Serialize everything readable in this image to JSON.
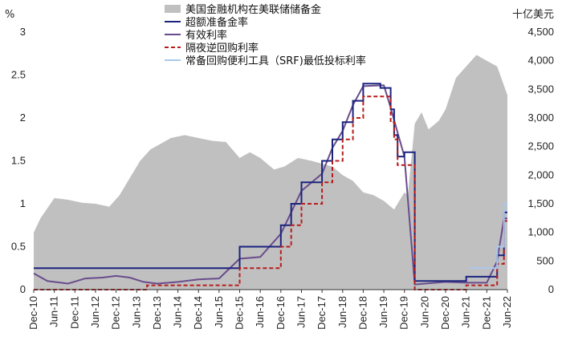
{
  "chart_data": {
    "type": "line",
    "left_unit": "%",
    "right_unit": "十亿美元",
    "ylim_left": [
      0,
      3
    ],
    "ylim_right": [
      0,
      4500
    ],
    "left_ticks": [
      "0",
      "0.5",
      "1",
      "1.5",
      "2",
      "2.5",
      "3"
    ],
    "right_ticks": [
      "0",
      "500",
      "1,000",
      "1,500",
      "2,000",
      "2,500",
      "3,000",
      "3,500",
      "4,000",
      "4,500"
    ],
    "x_range": [
      "2010-12",
      "2022-06"
    ],
    "x_ticks": [
      "Dec-10",
      "Jun-11",
      "Dec-11",
      "Jun-12",
      "Dec-12",
      "Jun-13",
      "Dec-13",
      "Jun-14",
      "Dec-14",
      "Jun-15",
      "Dec-15",
      "Jun-16",
      "Dec-16",
      "Jun-17",
      "Dec-17",
      "Jun-18",
      "Dec-18",
      "Jun-19",
      "Dec-19",
      "Jun-20",
      "Dec-20",
      "Jun-21",
      "Dec-21",
      "Jun-22"
    ],
    "legend_placement": "top-center",
    "grid": false,
    "series": [
      {
        "name": "美国金融机构在美联储储备金",
        "kind": "area",
        "axis": "right",
        "color": "#c0c0c0",
        "points": [
          [
            "2010-12",
            1000
          ],
          [
            "2011-02",
            1250
          ],
          [
            "2011-06",
            1600
          ],
          [
            "2011-10",
            1570
          ],
          [
            "2012-02",
            1520
          ],
          [
            "2012-06",
            1500
          ],
          [
            "2012-10",
            1450
          ],
          [
            "2013-01",
            1650
          ],
          [
            "2013-04",
            1950
          ],
          [
            "2013-07",
            2250
          ],
          [
            "2013-10",
            2450
          ],
          [
            "2014-01",
            2550
          ],
          [
            "2014-04",
            2650
          ],
          [
            "2014-08",
            2700
          ],
          [
            "2014-12",
            2650
          ],
          [
            "2015-04",
            2600
          ],
          [
            "2015-08",
            2580
          ],
          [
            "2015-12",
            2300
          ],
          [
            "2016-03",
            2400
          ],
          [
            "2016-06",
            2300
          ],
          [
            "2016-10",
            2100
          ],
          [
            "2017-01",
            2150
          ],
          [
            "2017-05",
            2300
          ],
          [
            "2017-09",
            2250
          ],
          [
            "2017-12",
            2200
          ],
          [
            "2018-03",
            2150
          ],
          [
            "2018-06",
            2000
          ],
          [
            "2018-09",
            1900
          ],
          [
            "2018-12",
            1700
          ],
          [
            "2019-03",
            1650
          ],
          [
            "2019-06",
            1550
          ],
          [
            "2019-09",
            1400
          ],
          [
            "2019-12",
            1700
          ],
          [
            "2020-01",
            1650
          ],
          [
            "2020-03",
            2900
          ],
          [
            "2020-05",
            3100
          ],
          [
            "2020-07",
            2800
          ],
          [
            "2020-10",
            2950
          ],
          [
            "2020-12",
            3150
          ],
          [
            "2021-03",
            3700
          ],
          [
            "2021-06",
            3900
          ],
          [
            "2021-09",
            4100
          ],
          [
            "2021-12",
            4000
          ],
          [
            "2022-03",
            3900
          ],
          [
            "2022-06",
            3400
          ]
        ]
      },
      {
        "name": "超额准备金率",
        "kind": "step",
        "axis": "left",
        "color": "#1a237e",
        "points": [
          [
            "2010-12",
            0.25
          ],
          [
            "2015-12",
            0.5
          ],
          [
            "2016-12",
            0.75
          ],
          [
            "2017-03",
            1.0
          ],
          [
            "2017-06",
            1.25
          ],
          [
            "2017-12",
            1.5
          ],
          [
            "2018-03",
            1.75
          ],
          [
            "2018-06",
            1.95
          ],
          [
            "2018-09",
            2.2
          ],
          [
            "2018-12",
            2.4
          ],
          [
            "2019-05",
            2.35
          ],
          [
            "2019-08",
            2.1
          ],
          [
            "2019-09",
            1.8
          ],
          [
            "2019-10",
            1.55
          ],
          [
            "2019-12",
            1.6
          ],
          [
            "2020-03",
            0.1
          ],
          [
            "2021-06",
            0.15
          ],
          [
            "2022-03",
            0.4
          ],
          [
            "2022-05",
            0.9
          ],
          [
            "2022-06",
            0.9
          ]
        ]
      },
      {
        "name": "有效利率",
        "kind": "line",
        "axis": "left",
        "color": "#6a4c8c",
        "points": [
          [
            "2010-12",
            0.19
          ],
          [
            "2011-04",
            0.1
          ],
          [
            "2011-10",
            0.07
          ],
          [
            "2012-03",
            0.13
          ],
          [
            "2012-08",
            0.14
          ],
          [
            "2012-12",
            0.16
          ],
          [
            "2013-04",
            0.14
          ],
          [
            "2013-08",
            0.09
          ],
          [
            "2013-12",
            0.07
          ],
          [
            "2014-06",
            0.09
          ],
          [
            "2014-12",
            0.12
          ],
          [
            "2015-06",
            0.13
          ],
          [
            "2015-12",
            0.36
          ],
          [
            "2016-06",
            0.38
          ],
          [
            "2016-12",
            0.65
          ],
          [
            "2017-03",
            0.9
          ],
          [
            "2017-06",
            1.15
          ],
          [
            "2017-12",
            1.35
          ],
          [
            "2018-03",
            1.65
          ],
          [
            "2018-06",
            1.85
          ],
          [
            "2018-09",
            2.15
          ],
          [
            "2018-12",
            2.37
          ],
          [
            "2019-06",
            2.38
          ],
          [
            "2019-08",
            2.12
          ],
          [
            "2019-10",
            1.83
          ],
          [
            "2019-12",
            1.55
          ],
          [
            "2020-03",
            0.06
          ],
          [
            "2020-12",
            0.09
          ],
          [
            "2021-06",
            0.08
          ],
          [
            "2021-12",
            0.08
          ],
          [
            "2022-03",
            0.33
          ],
          [
            "2022-05",
            0.83
          ],
          [
            "2022-06",
            0.83
          ]
        ]
      },
      {
        "name": "隔夜逆回购利率",
        "kind": "step",
        "axis": "left",
        "color": "#b71c1c",
        "dashed": true,
        "points": [
          [
            "2010-12",
            0.0
          ],
          [
            "2013-09",
            0.05
          ],
          [
            "2015-12",
            0.25
          ],
          [
            "2016-12",
            0.5
          ],
          [
            "2017-03",
            0.75
          ],
          [
            "2017-06",
            1.0
          ],
          [
            "2017-12",
            1.25
          ],
          [
            "2018-03",
            1.5
          ],
          [
            "2018-06",
            1.75
          ],
          [
            "2018-09",
            2.0
          ],
          [
            "2018-12",
            2.25
          ],
          [
            "2019-08",
            1.95
          ],
          [
            "2019-09",
            1.75
          ],
          [
            "2019-10",
            1.45
          ],
          [
            "2020-03",
            0.0
          ],
          [
            "2021-06",
            0.05
          ],
          [
            "2022-03",
            0.3
          ],
          [
            "2022-05",
            0.8
          ],
          [
            "2022-06",
            0.8
          ]
        ]
      },
      {
        "name": "常备回购便利工具（SRF)最低投标利率",
        "kind": "step",
        "axis": "left",
        "color": "#a9c8ec",
        "points": [
          [
            "2021-07",
            0.25
          ],
          [
            "2022-03",
            0.5
          ],
          [
            "2022-05",
            1.0
          ],
          [
            "2022-06",
            1.0
          ]
        ]
      }
    ]
  }
}
